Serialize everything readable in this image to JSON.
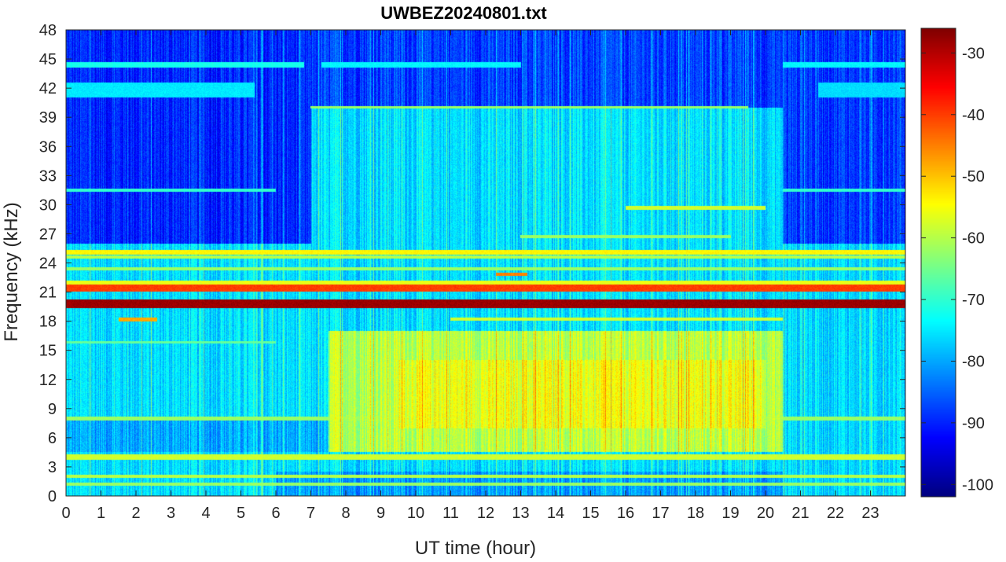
{
  "chart_data": {
    "type": "heatmap",
    "title": "UWBEZ20240801.txt",
    "xlabel": "UT time (hour)",
    "ylabel": "Frequency (kHz)",
    "xlim": [
      0,
      24
    ],
    "ylim": [
      0,
      48
    ],
    "x_ticks": [
      0,
      1,
      2,
      3,
      4,
      5,
      6,
      7,
      8,
      9,
      10,
      11,
      12,
      13,
      14,
      15,
      16,
      17,
      18,
      19,
      20,
      21,
      22,
      23
    ],
    "y_ticks": [
      0,
      3,
      6,
      9,
      12,
      15,
      18,
      21,
      24,
      27,
      30,
      33,
      36,
      39,
      42,
      45,
      48
    ],
    "colorbar": {
      "colormap": "jet",
      "clim": [
        -102,
        -26
      ],
      "ticks": [
        -30,
        -40,
        -50,
        -60,
        -70,
        -80,
        -90,
        -100
      ]
    },
    "background_db": -76,
    "regions": [
      {
        "t": [
          0,
          24
        ],
        "f": [
          40,
          48
        ],
        "db": -88
      },
      {
        "t": [
          0,
          7
        ],
        "f": [
          26,
          48
        ],
        "db": -90
      },
      {
        "t": [
          20.5,
          24
        ],
        "f": [
          26,
          48
        ],
        "db": -88
      },
      {
        "t": [
          7.5,
          20.5
        ],
        "f": [
          4.5,
          17
        ],
        "db": -60
      },
      {
        "t": [
          9.5,
          20
        ],
        "f": [
          7,
          14
        ],
        "db": -56
      },
      {
        "t": [
          0,
          7.5
        ],
        "f": [
          4.5,
          8
        ],
        "db": -80
      },
      {
        "t": [
          6,
          20.5
        ],
        "f": [
          0,
          2.5
        ],
        "db": -81
      }
    ],
    "bands": [
      {
        "f": 19.8,
        "width": 0.45,
        "db": -28,
        "t": [
          0,
          24
        ]
      },
      {
        "f": 21.4,
        "width": 0.35,
        "db": -40,
        "t": [
          0,
          24
        ]
      },
      {
        "f": 21.9,
        "width": 0.25,
        "db": -56,
        "t": [
          0,
          24
        ]
      },
      {
        "f": 25.1,
        "width": 0.25,
        "db": -54,
        "t": [
          0,
          24
        ]
      },
      {
        "f": 24.6,
        "width": 0.18,
        "db": -60,
        "t": [
          0,
          24
        ]
      },
      {
        "f": 23.4,
        "width": 0.15,
        "db": -62,
        "t": [
          0,
          24
        ]
      },
      {
        "f": 18.2,
        "width": 0.2,
        "db": -48,
        "t": [
          1.5,
          2.6
        ]
      },
      {
        "f": 18.2,
        "width": 0.15,
        "db": -58,
        "t": [
          11,
          20.5
        ]
      },
      {
        "f": 4.0,
        "width": 0.3,
        "db": -58,
        "t": [
          0,
          24
        ]
      },
      {
        "f": 8.0,
        "width": 0.2,
        "db": -62,
        "t": [
          0,
          24
        ]
      },
      {
        "f": 2.0,
        "width": 0.15,
        "db": -60,
        "t": [
          0,
          24
        ]
      },
      {
        "f": 1.2,
        "width": 0.15,
        "db": -62,
        "t": [
          0,
          24
        ]
      },
      {
        "f": 44.4,
        "width": 0.25,
        "db": -72,
        "t": [
          0,
          6.8
        ]
      },
      {
        "f": 44.4,
        "width": 0.25,
        "db": -74,
        "t": [
          7.3,
          13
        ]
      },
      {
        "f": 44.4,
        "width": 0.25,
        "db": -74,
        "t": [
          20.5,
          24
        ]
      },
      {
        "f": 41.8,
        "width": 0.8,
        "db": -75,
        "t": [
          0,
          5.4
        ]
      },
      {
        "f": 41.8,
        "width": 0.8,
        "db": -76,
        "t": [
          21.5,
          24
        ]
      },
      {
        "f": 40.0,
        "width": 0.12,
        "db": -62,
        "t": [
          7,
          19.5
        ]
      },
      {
        "f": 31.5,
        "width": 0.15,
        "db": -70,
        "t": [
          0,
          6
        ]
      },
      {
        "f": 31.5,
        "width": 0.15,
        "db": -70,
        "t": [
          20.5,
          24
        ]
      },
      {
        "f": 29.7,
        "width": 0.2,
        "db": -58,
        "t": [
          16,
          20
        ]
      },
      {
        "f": 26.7,
        "width": 0.15,
        "db": -62,
        "t": [
          13,
          19
        ]
      },
      {
        "f": 22.8,
        "width": 0.15,
        "db": -45,
        "t": [
          12.3,
          13.2
        ]
      },
      {
        "f": 15.8,
        "width": 0.12,
        "db": -66,
        "t": [
          0,
          6
        ]
      }
    ]
  }
}
